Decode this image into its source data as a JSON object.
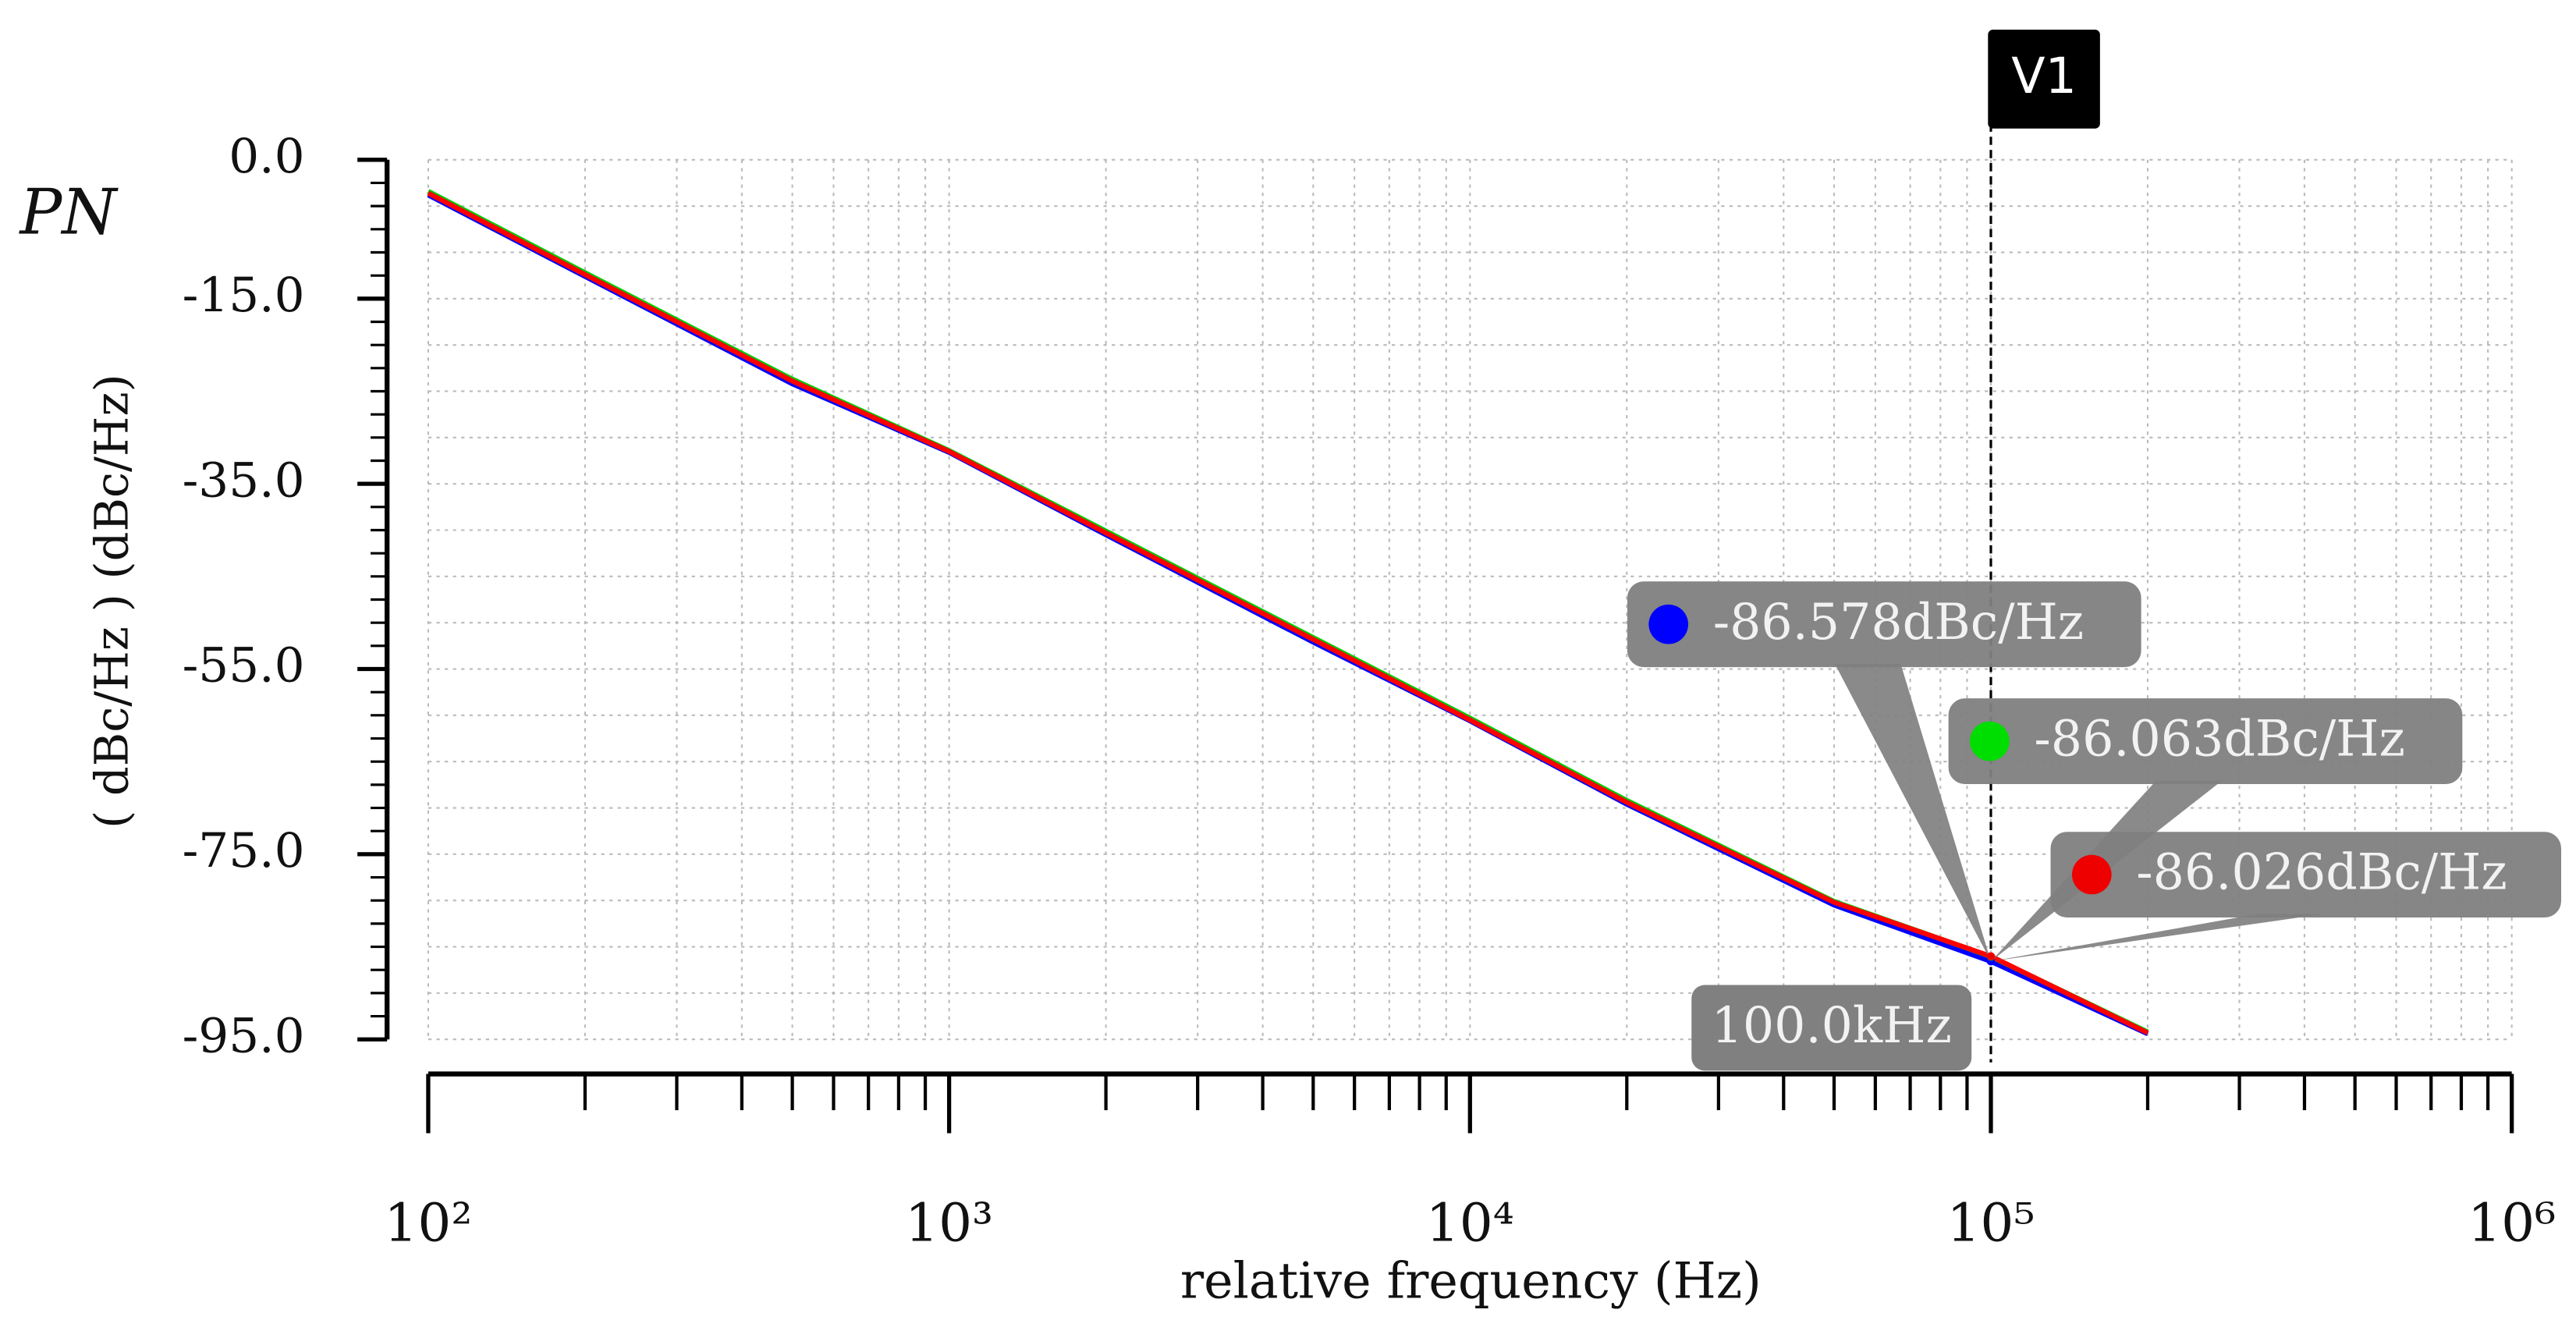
{
  "chart_data": {
    "type": "line",
    "title": "PN",
    "y_label": "( dBc/Hz ) (dBc/Hz)",
    "x_label": "relative frequency (Hz)",
    "log_x": true,
    "grid": true,
    "x": [
      100,
      200,
      500,
      1000,
      2000,
      5000,
      10000,
      20000,
      50000,
      100000,
      200000
    ],
    "series": [
      {
        "name": "blue",
        "color": "#0000ff",
        "values": [
          -3.8,
          -12.6,
          -24.2,
          -31.6,
          -40.5,
          -52.1,
          -60.6,
          -69.6,
          -80.5,
          -86.578,
          -94.4
        ]
      },
      {
        "name": "green",
        "color": "#00cc00",
        "values": [
          -3.4,
          -12.2,
          -23.7,
          -31.4,
          -40.1,
          -51.6,
          -60.3,
          -69.2,
          -80.1,
          -86.063,
          -94.2
        ]
      },
      {
        "name": "red",
        "color": "#ff0000",
        "values": [
          -3.6,
          -12.4,
          -23.9,
          -31.5,
          -40.3,
          -51.8,
          -60.5,
          -69.4,
          -80.2,
          -86.026,
          -94.3
        ]
      }
    ],
    "xlim": [
      100,
      1000000
    ],
    "xticks": [
      {
        "value": 100,
        "label": "10²"
      },
      {
        "value": 1000,
        "label": "10³"
      },
      {
        "value": 10000,
        "label": "10⁴"
      },
      {
        "value": 100000,
        "label": "10⁵"
      },
      {
        "value": 1000000,
        "label": "10⁶"
      }
    ],
    "ylim": [
      -95,
      0
    ],
    "yticks": [
      {
        "value": 0,
        "label": "0.0"
      },
      {
        "value": -15,
        "label": "-15.0"
      },
      {
        "value": -35,
        "label": "-35.0"
      },
      {
        "value": -55,
        "label": "-55.0"
      },
      {
        "value": -75,
        "label": "-75.0"
      },
      {
        "value": -95,
        "label": "-95.0"
      }
    ],
    "cursor": {
      "name": "V1",
      "x": 100000,
      "x_label": "100.0kHz",
      "readouts": [
        {
          "value": -86.578,
          "label": "-86.578dBc/Hz",
          "color": "#0000ff"
        },
        {
          "value": -86.063,
          "label": "-86.063dBc/Hz",
          "color": "#00dd00"
        },
        {
          "value": -86.026,
          "label": "-86.026dBc/Hz",
          "color": "#ee0000"
        }
      ]
    }
  }
}
